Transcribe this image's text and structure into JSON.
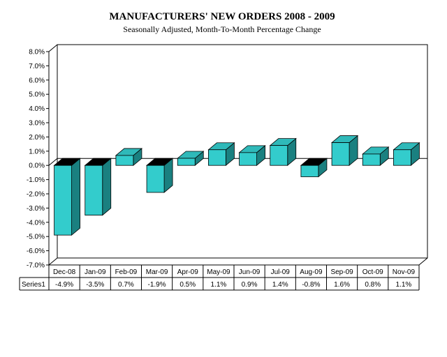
{
  "chart_data": {
    "type": "bar",
    "title": "MANUFACTURERS' NEW ORDERS 2008 - 2009",
    "subtitle": "Seasonally Adjusted,  Month-To-Month Percentage Change",
    "categories": [
      "Dec-08",
      "Jan-09",
      "Feb-09",
      "Mar-09",
      "Apr-09",
      "May-09",
      "Jun-09",
      "Jul-09",
      "Aug-09",
      "Sep-09",
      "Oct-09",
      "Nov-09"
    ],
    "series": [
      {
        "name": "Series1",
        "values": [
          -4.9,
          -3.5,
          0.7,
          -1.9,
          0.5,
          1.1,
          0.9,
          1.4,
          -0.8,
          1.6,
          0.8,
          1.1
        ],
        "labels": [
          "-4.9%",
          "-3.5%",
          "0.7%",
          "-1.9%",
          "0.5%",
          "1.1%",
          "0.9%",
          "1.4%",
          "-0.8%",
          "1.6%",
          "0.8%",
          "1.1%"
        ]
      }
    ],
    "ylim": [
      -7,
      8
    ],
    "ytick_labels": [
      "8.0%",
      "7.0%",
      "6.0%",
      "5.0%",
      "4.0%",
      "3.0%",
      "2.0%",
      "1.0%",
      "0.0%",
      "-1.0%",
      "-2.0%",
      "-3.0%",
      "-4.0%",
      "-5.0%",
      "-6.0%",
      "-7.0%"
    ],
    "grid": false,
    "style": "3d-column-with-data-table",
    "colors": {
      "bar_front": "#33CCCC",
      "bar_side": "#1A8080",
      "bar_top_positive": "#2FB9B9",
      "bar_top_negative": "#000000",
      "axis": "#000000"
    }
  }
}
